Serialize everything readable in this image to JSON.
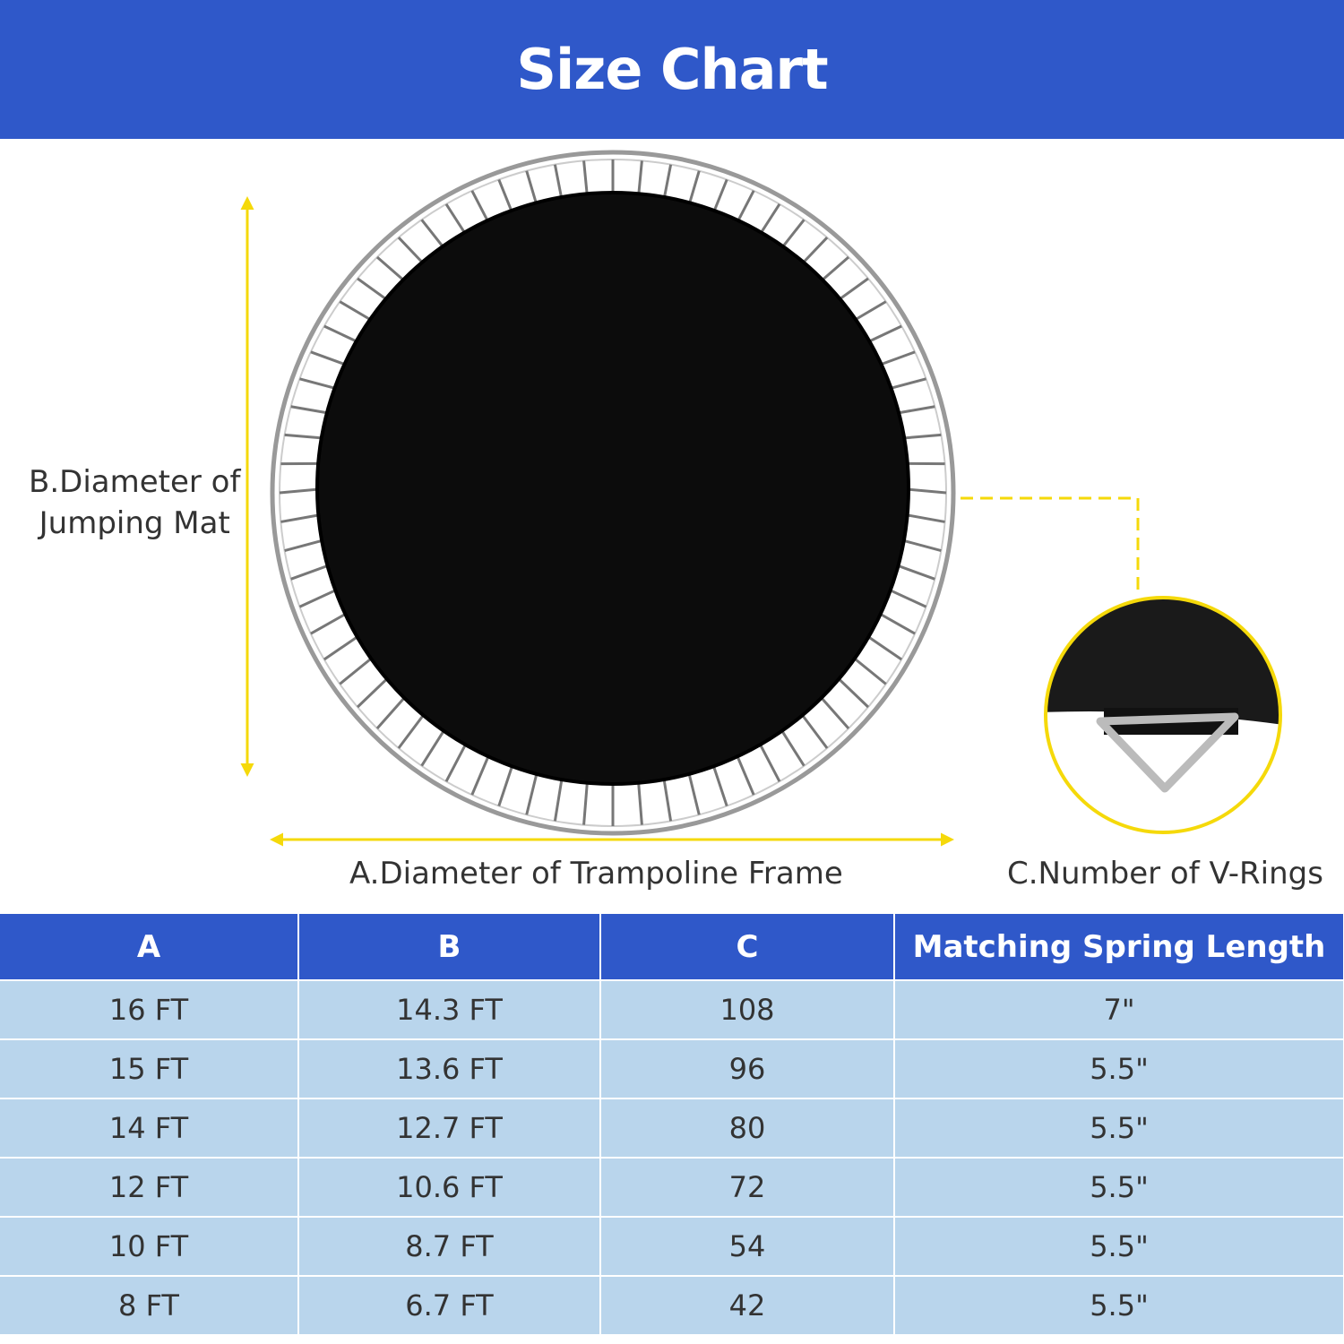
{
  "header": {
    "title": "Size Chart"
  },
  "labels": {
    "a": "A.Diameter of Trampoline Frame",
    "b_line1": "B.Diameter of",
    "b_line2": "Jumping Mat",
    "c": "C.Number of V-Rings"
  },
  "colors": {
    "brand_blue": "#2f58c9",
    "row_bg": "#b9d5ec",
    "arrow_yellow": "#f5d90a"
  },
  "table": {
    "headers": [
      "A",
      "B",
      "C",
      "Matching Spring Length"
    ],
    "rows": [
      [
        "16 FT",
        "14.3 FT",
        "108",
        "7\""
      ],
      [
        "15 FT",
        "13.6 FT",
        "96",
        "5.5\""
      ],
      [
        "14 FT",
        "12.7 FT",
        "80",
        "5.5\""
      ],
      [
        "12 FT",
        "10.6 FT",
        "72",
        "5.5\""
      ],
      [
        "10 FT",
        "8.7 FT",
        "54",
        "5.5\""
      ],
      [
        "8 FT",
        "6.7 FT",
        "42",
        "5.5\""
      ]
    ]
  }
}
